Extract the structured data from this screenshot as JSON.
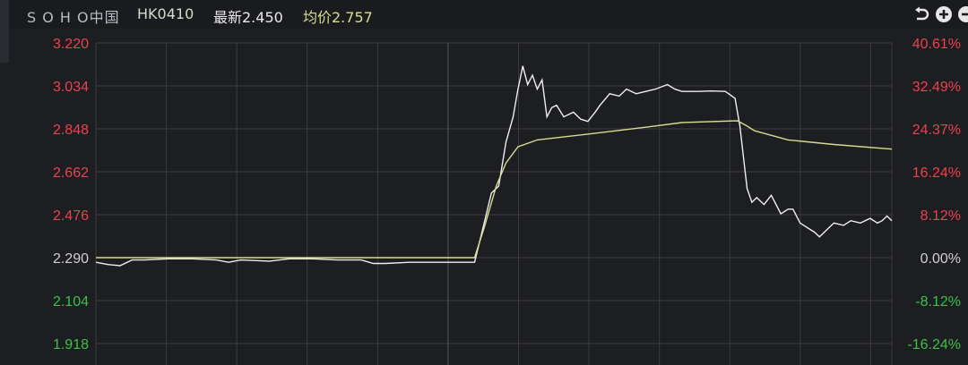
{
  "header": {
    "name": "S O H O中国",
    "code": "HK0410",
    "last_label": "最新2.450",
    "avg_label": "均价2.757",
    "icons": [
      "undo-icon",
      "zoom-in-icon",
      "zoom-out-icon"
    ]
  },
  "colors": {
    "background": "#1d1e22",
    "grid": "#3a3b40",
    "price_line": "#eeeeee",
    "avg_line": "#d6dc8e",
    "up": "#e8434f",
    "down": "#3fbf4a",
    "flat": "#d0d0d0"
  },
  "chart_data": {
    "type": "line",
    "title": "",
    "xlabel": "",
    "ylabel": "",
    "ylim": [
      1.918,
      3.22
    ],
    "x_range": [
      0,
      330
    ],
    "grid": true,
    "prev_close": 2.29,
    "left_ticks": [
      "3.220",
      "3.034",
      "2.848",
      "2.662",
      "2.476",
      "2.290",
      "2.104",
      "1.918"
    ],
    "right_ticks": [
      "40.61%",
      "32.49%",
      "24.37%",
      "16.24%",
      "8.12%",
      "0.00%",
      "-8.12%",
      "-16.24%"
    ],
    "series": [
      {
        "key": "price",
        "points": [
          [
            0,
            2.27
          ],
          [
            5,
            2.26
          ],
          [
            10,
            2.255
          ],
          [
            15,
            2.28
          ],
          [
            20,
            2.28
          ],
          [
            30,
            2.285
          ],
          [
            40,
            2.285
          ],
          [
            50,
            2.28
          ],
          [
            55,
            2.27
          ],
          [
            60,
            2.28
          ],
          [
            72,
            2.275
          ],
          [
            80,
            2.285
          ],
          [
            90,
            2.285
          ],
          [
            100,
            2.28
          ],
          [
            110,
            2.28
          ],
          [
            115,
            2.265
          ],
          [
            120,
            2.265
          ],
          [
            130,
            2.27
          ],
          [
            140,
            2.27
          ],
          [
            150,
            2.27
          ],
          [
            157,
            2.27
          ],
          [
            161,
            2.44
          ],
          [
            164,
            2.57
          ],
          [
            167,
            2.6
          ],
          [
            170,
            2.79
          ],
          [
            173,
            2.9
          ],
          [
            175,
            3.02
          ],
          [
            177,
            3.12
          ],
          [
            179,
            3.04
          ],
          [
            181,
            3.08
          ],
          [
            183,
            3.02
          ],
          [
            185,
            3.06
          ],
          [
            187,
            2.9
          ],
          [
            189,
            2.94
          ],
          [
            191,
            2.95
          ],
          [
            194,
            2.9
          ],
          [
            198,
            2.92
          ],
          [
            201,
            2.89
          ],
          [
            204,
            2.88
          ],
          [
            207,
            2.92
          ],
          [
            209,
            2.95
          ],
          [
            213,
            3.0
          ],
          [
            217,
            2.99
          ],
          [
            220,
            3.02
          ],
          [
            224,
            3.0
          ],
          [
            228,
            3.01
          ],
          [
            232,
            3.02
          ],
          [
            237,
            3.04
          ],
          [
            240,
            3.02
          ],
          [
            243,
            3.01
          ],
          [
            250,
            3.01
          ],
          [
            255,
            3.012
          ],
          [
            261,
            3.01
          ],
          [
            265,
            2.98
          ],
          [
            267,
            2.86
          ],
          [
            270,
            2.59
          ],
          [
            272,
            2.53
          ],
          [
            274,
            2.55
          ],
          [
            277,
            2.52
          ],
          [
            280,
            2.56
          ],
          [
            284,
            2.48
          ],
          [
            287,
            2.5
          ],
          [
            289,
            2.5
          ],
          [
            292,
            2.44
          ],
          [
            295,
            2.42
          ],
          [
            298,
            2.4
          ],
          [
            300,
            2.38
          ],
          [
            303,
            2.41
          ],
          [
            306,
            2.44
          ],
          [
            310,
            2.43
          ],
          [
            313,
            2.45
          ],
          [
            317,
            2.44
          ],
          [
            321,
            2.46
          ],
          [
            324,
            2.44
          ],
          [
            326,
            2.45
          ],
          [
            328,
            2.47
          ],
          [
            330,
            2.45
          ]
        ]
      },
      {
        "key": "average",
        "points": [
          [
            0,
            2.29
          ],
          [
            40,
            2.29
          ],
          [
            100,
            2.29
          ],
          [
            157,
            2.29
          ],
          [
            161,
            2.42
          ],
          [
            166,
            2.6
          ],
          [
            170,
            2.7
          ],
          [
            175,
            2.77
          ],
          [
            183,
            2.8
          ],
          [
            204,
            2.825
          ],
          [
            228,
            2.855
          ],
          [
            243,
            2.875
          ],
          [
            266,
            2.883
          ],
          [
            270,
            2.86
          ],
          [
            273,
            2.84
          ],
          [
            287,
            2.8
          ],
          [
            306,
            2.78
          ],
          [
            330,
            2.76
          ]
        ]
      }
    ]
  }
}
